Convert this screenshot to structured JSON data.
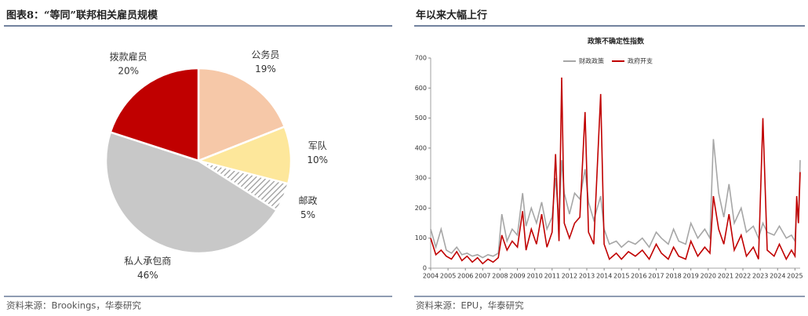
{
  "chart_data": [
    {
      "type": "pie",
      "title": "图表8：“等同”联邦相关雇员规模",
      "categories": [
        "公务员",
        "军队",
        "邮政",
        "私人承包商",
        "拨款雇员"
      ],
      "values": [
        19,
        10,
        5,
        46,
        20
      ],
      "value_labels": [
        "19%",
        "10%",
        "5%",
        "46%",
        "20%"
      ],
      "colors": [
        "#f6c8a8",
        "#fde79b",
        "hatch",
        "#c8c8c8",
        "#c00000"
      ],
      "source": "资料来源：Brookings，华泰研究"
    },
    {
      "type": "line",
      "title": "年以来大幅上行",
      "subtitle": "政策不确定性指数",
      "x": [
        2004.0,
        2004.3,
        2004.6,
        2004.9,
        2005.2,
        2005.5,
        2005.8,
        2006.1,
        2006.4,
        2006.7,
        2007.0,
        2007.3,
        2007.6,
        2007.9,
        2008.1,
        2008.4,
        2008.7,
        2009.0,
        2009.3,
        2009.5,
        2009.8,
        2010.1,
        2010.4,
        2010.7,
        2011.0,
        2011.2,
        2011.4,
        2011.55,
        2011.7,
        2012.0,
        2012.3,
        2012.6,
        2012.9,
        2013.1,
        2013.4,
        2013.8,
        2014.0,
        2014.3,
        2014.7,
        2015.0,
        2015.4,
        2015.8,
        2016.2,
        2016.6,
        2017.0,
        2017.3,
        2017.7,
        2018.0,
        2018.3,
        2018.7,
        2019.0,
        2019.4,
        2019.8,
        2020.1,
        2020.3,
        2020.6,
        2020.9,
        2021.2,
        2021.5,
        2021.9,
        2022.2,
        2022.6,
        2022.9,
        2023.15,
        2023.4,
        2023.8,
        2024.1,
        2024.5,
        2024.8,
        2025.0,
        2025.1,
        2025.2,
        2025.3
      ],
      "series": [
        {
          "name": "财政政策",
          "color": "#a6a6a6",
          "values": [
            130,
            70,
            130,
            60,
            50,
            70,
            45,
            50,
            40,
            45,
            35,
            45,
            40,
            50,
            180,
            90,
            130,
            110,
            250,
            140,
            200,
            150,
            220,
            130,
            170,
            300,
            160,
            360,
            250,
            180,
            250,
            230,
            330,
            220,
            160,
            240,
            130,
            80,
            90,
            70,
            90,
            80,
            100,
            70,
            120,
            100,
            80,
            130,
            90,
            80,
            150,
            100,
            130,
            100,
            430,
            250,
            170,
            280,
            150,
            200,
            120,
            140,
            100,
            150,
            120,
            110,
            140,
            100,
            110,
            90,
            210,
            150,
            360
          ]
        },
        {
          "name": "政府开支",
          "color": "#c00000",
          "values": [
            100,
            45,
            60,
            40,
            30,
            55,
            25,
            40,
            20,
            35,
            15,
            30,
            20,
            35,
            110,
            60,
            90,
            70,
            190,
            60,
            130,
            80,
            180,
            70,
            120,
            380,
            90,
            635,
            150,
            100,
            150,
            170,
            520,
            120,
            80,
            580,
            80,
            30,
            50,
            30,
            55,
            40,
            60,
            30,
            80,
            50,
            30,
            70,
            40,
            30,
            90,
            40,
            70,
            50,
            240,
            130,
            80,
            180,
            60,
            110,
            40,
            70,
            30,
            500,
            60,
            40,
            80,
            30,
            60,
            40,
            240,
            150,
            320
          ]
        }
      ],
      "xlim": [
        2004,
        2025.3
      ],
      "xticks": [
        2004,
        2005,
        2006,
        2007,
        2008,
        2009,
        2010,
        2011,
        2012,
        2013,
        2014,
        2015,
        2016,
        2017,
        2018,
        2019,
        2020,
        2021,
        2022,
        2023,
        2024,
        2025
      ],
      "ylim": [
        0,
        700
      ],
      "yticks": [
        0,
        100,
        200,
        300,
        400,
        500,
        600,
        700
      ],
      "source": "资料来源：EPU，华泰研究"
    }
  ]
}
